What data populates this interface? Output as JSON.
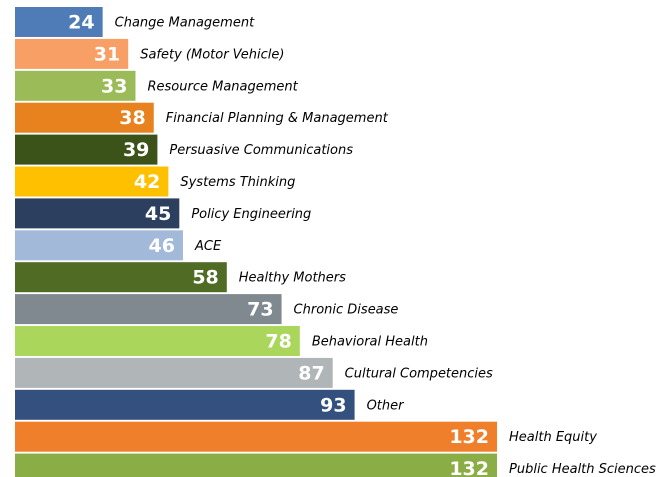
{
  "chart_data": {
    "type": "bar",
    "orientation": "horizontal",
    "categories": [
      "Change Management",
      "Safety (Motor Vehicle)",
      "Resource Management",
      "Financial Planning & Management",
      "Persuasive Communications",
      "Systems Thinking",
      "Policy Engineering",
      "ACE",
      "Healthy Mothers",
      "Chronic Disease",
      "Behavioral Health",
      "Cultural Competencies",
      "Other",
      "Health Equity",
      "Public Health Sciences"
    ],
    "values": [
      24,
      31,
      33,
      38,
      39,
      42,
      45,
      46,
      58,
      73,
      78,
      87,
      93,
      132,
      132
    ],
    "colors": [
      "#4f7bb6",
      "#f79f65",
      "#9bbb59",
      "#e8821e",
      "#3b5219",
      "#ffc000",
      "#2c3f5f",
      "#a3b9da",
      "#4f6b24",
      "#7f898f",
      "#a9d65b",
      "#b0b5b8",
      "#34507e",
      "#f07f2b",
      "#8bad46"
    ],
    "grid": false
  }
}
